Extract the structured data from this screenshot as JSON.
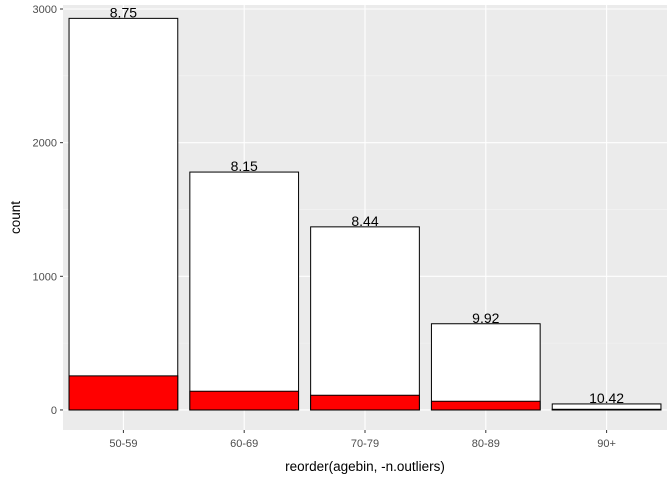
{
  "chart_data": {
    "type": "bar",
    "title": "",
    "xlabel": "reorder(agebin, -n.outliers)",
    "ylabel": "count",
    "ylim": [
      -150,
      3030
    ],
    "yticks": [
      0,
      1000,
      2000,
      3000
    ],
    "categories": [
      "50-59",
      "60-69",
      "70-79",
      "80-89",
      "90+"
    ],
    "series": [
      {
        "values": [
          2930,
          1780,
          1370,
          645,
          45
        ]
      },
      {
        "values": [
          255,
          140,
          110,
          65,
          5
        ]
      }
    ],
    "data_labels": [
      "8.75",
      "8.15",
      "8.44",
      "9.92",
      "10.42"
    ],
    "grid": true,
    "legend": "none",
    "colors": {
      "panel_bg": "#ebebeb",
      "grid_major": "#ffffff",
      "grid_minor": "#f5f5f5",
      "total_fill": "#ffffff",
      "outlier_fill": "#ff0000",
      "bar_stroke": "#000000"
    }
  }
}
